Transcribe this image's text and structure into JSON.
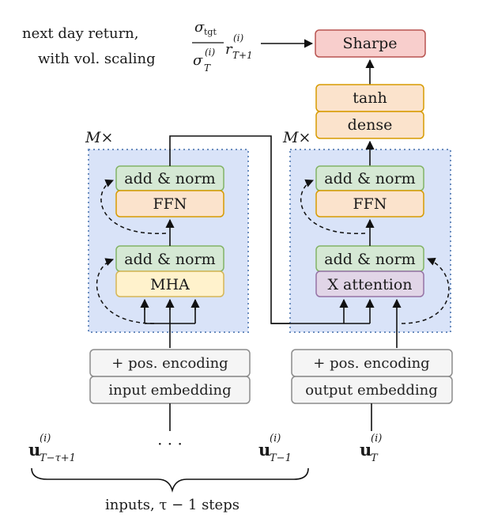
{
  "colors": {
    "block_fill": "#d9e3f8",
    "block_border": "#6c8ebf",
    "green_fill": "#d5e8d4",
    "green_border": "#82b366",
    "orange_fill": "#fbe3cc",
    "orange_border": "#d79b00",
    "yellow_fill": "#fff2cc",
    "yellow_border": "#d6b656",
    "purple_fill": "#e1d5e7",
    "purple_border": "#9673a6",
    "red_fill": "#f8cecc",
    "red_border": "#b85450",
    "gray_fill": "#f5f5f5",
    "gray_border": "#8c8c8c"
  },
  "header": {
    "line1": "next day return,",
    "line2": "with vol. scaling",
    "sigma": "σ",
    "tgt": "tgt",
    "sup_i": "(i)",
    "sub_T": "T",
    "r": "r",
    "sub_T1": "T+1"
  },
  "output_head": {
    "sharpe": "Sharpe",
    "tanh": "tanh",
    "dense": "dense"
  },
  "encoder": {
    "repeat_label": "M×",
    "add_norm_top": "add & norm",
    "ffn": "FFN",
    "add_norm_bottom": "add & norm",
    "attention": "MHA",
    "pos_encoding": "+ pos. encoding",
    "embedding": "input embedding"
  },
  "decoder": {
    "repeat_label": "M×",
    "add_norm_top": "add & norm",
    "ffn": "FFN",
    "add_norm_bottom": "add & norm",
    "attention": "X attention",
    "pos_encoding": "+ pos. encoding",
    "embedding": "output embedding"
  },
  "inputs": {
    "u": "u",
    "sup_i": "(i)",
    "first_sub": "T−τ+1",
    "ellipsis": "· · ·",
    "last_sub": "T−1",
    "caption": "inputs, τ − 1 steps",
    "output_sub": "T"
  }
}
